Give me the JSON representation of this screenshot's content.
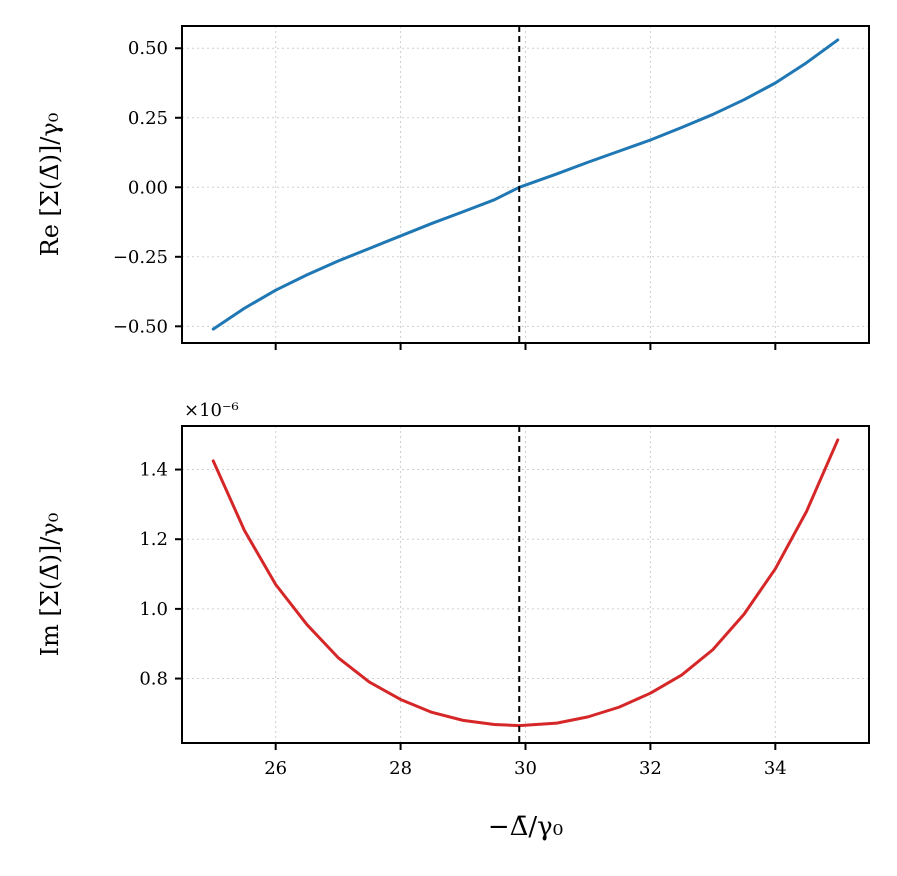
{
  "chart_data": [
    {
      "type": "line",
      "panel": "top",
      "ylabel": "Re [Σ(Δ̄)]/γ₀",
      "xlim": [
        24.5,
        35.5
      ],
      "ylim": [
        -0.56,
        0.58
      ],
      "x_ticks": [
        26,
        28,
        30,
        32,
        34
      ],
      "x_tick_labels_visible": false,
      "y_ticks": [
        -0.5,
        -0.25,
        0.0,
        0.25,
        0.5
      ],
      "y_tick_labels": [
        "−0.50",
        "−0.25",
        "0.00",
        "0.25",
        "0.50"
      ],
      "grid": true,
      "vline_x": 29.9,
      "series": [
        {
          "color": "#1f77b4",
          "x": [
            25.0,
            25.5,
            26.0,
            26.5,
            27.0,
            27.5,
            28.0,
            28.5,
            29.0,
            29.5,
            29.9,
            30.5,
            31.0,
            31.5,
            32.0,
            32.5,
            33.0,
            33.5,
            34.0,
            34.5,
            35.0
          ],
          "values": [
            -0.51,
            -0.435,
            -0.37,
            -0.315,
            -0.265,
            -0.22,
            -0.175,
            -0.13,
            -0.088,
            -0.045,
            0.0,
            0.048,
            0.09,
            0.13,
            0.17,
            0.215,
            0.262,
            0.315,
            0.375,
            0.448,
            0.53
          ]
        }
      ]
    },
    {
      "type": "line",
      "panel": "bottom",
      "ylabel": "Im [Σ(Δ̄)]/γ₀",
      "xlabel": "−Δ̄/γ₀",
      "offset_text": "×10⁻⁶",
      "xlim": [
        24.5,
        35.5
      ],
      "ylim": [
        0.615,
        1.525
      ],
      "x_ticks": [
        26,
        28,
        30,
        32,
        34
      ],
      "x_tick_labels": [
        "26",
        "28",
        "30",
        "32",
        "34"
      ],
      "y_ticks": [
        0.8,
        1.0,
        1.2,
        1.4
      ],
      "y_tick_labels": [
        "0.8",
        "1.0",
        "1.2",
        "1.4"
      ],
      "grid": true,
      "vline_x": 29.9,
      "series": [
        {
          "color": "#d62728",
          "x": [
            25.0,
            25.5,
            26.0,
            26.5,
            27.0,
            27.5,
            28.0,
            28.5,
            29.0,
            29.5,
            29.9,
            30.5,
            31.0,
            31.5,
            32.0,
            32.5,
            33.0,
            33.5,
            34.0,
            34.5,
            35.0
          ],
          "values": [
            1.425,
            1.225,
            1.07,
            0.955,
            0.86,
            0.79,
            0.74,
            0.703,
            0.68,
            0.668,
            0.665,
            0.672,
            0.69,
            0.718,
            0.758,
            0.81,
            0.883,
            0.985,
            1.115,
            1.28,
            1.485
          ]
        }
      ]
    }
  ]
}
